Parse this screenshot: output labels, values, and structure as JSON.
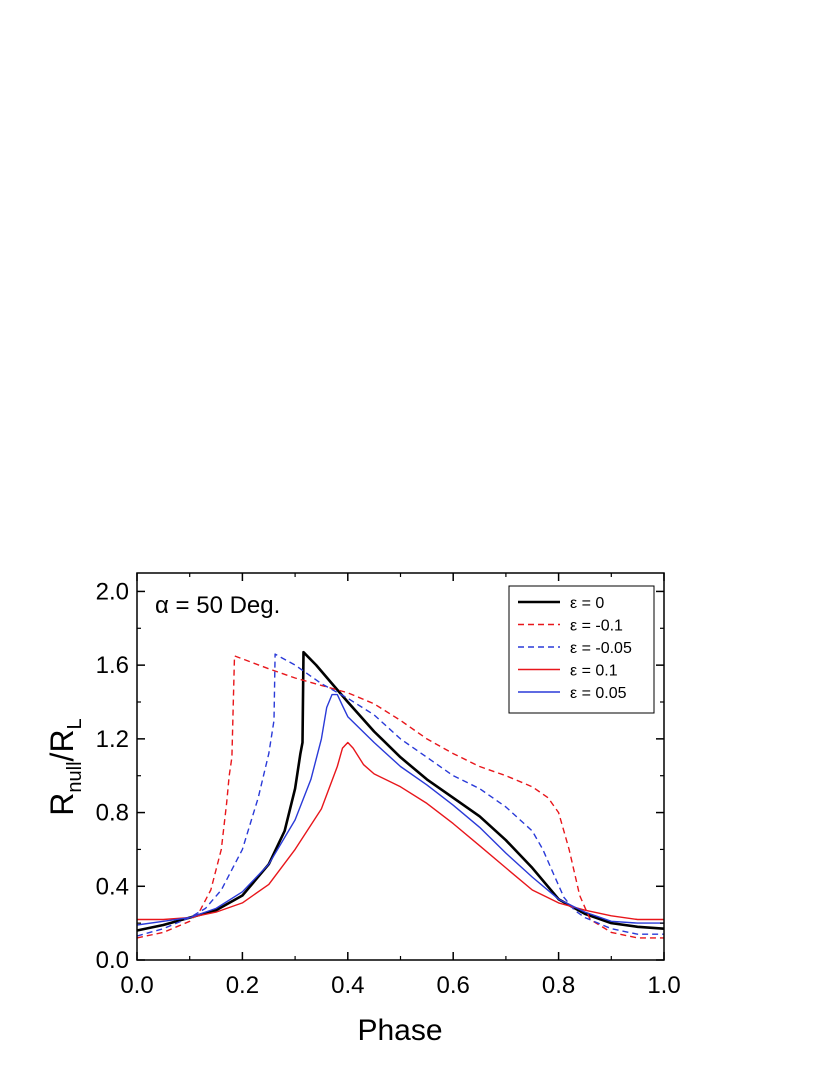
{
  "chart_data": {
    "type": "line",
    "annotation": "α = 50 Deg.",
    "xlabel": "Phase",
    "ylabel_main": "R",
    "ylabel_sub1": "null",
    "ylabel_mid": "/R",
    "ylabel_sub2": "L",
    "xlim": [
      0.0,
      1.0
    ],
    "ylim": [
      0.0,
      2.1
    ],
    "xticks": [
      "0.0",
      "0.2",
      "0.4",
      "0.6",
      "0.8",
      "1.0"
    ],
    "yticks": [
      "0.0",
      "0.4",
      "0.8",
      "1.2",
      "1.6",
      "2.0"
    ],
    "legend_position": "top-right",
    "series": [
      {
        "name": "ε = 0",
        "color": "#000000",
        "dash": "solid",
        "width": "thick",
        "points": [
          [
            0.0,
            0.16
          ],
          [
            0.05,
            0.19
          ],
          [
            0.1,
            0.23
          ],
          [
            0.15,
            0.27
          ],
          [
            0.2,
            0.35
          ],
          [
            0.25,
            0.52
          ],
          [
            0.28,
            0.7
          ],
          [
            0.3,
            0.93
          ],
          [
            0.31,
            1.12
          ],
          [
            0.314,
            1.18
          ],
          [
            0.316,
            1.67
          ],
          [
            0.34,
            1.6
          ],
          [
            0.37,
            1.5
          ],
          [
            0.4,
            1.4
          ],
          [
            0.45,
            1.24
          ],
          [
            0.5,
            1.1
          ],
          [
            0.55,
            0.98
          ],
          [
            0.6,
            0.88
          ],
          [
            0.65,
            0.78
          ],
          [
            0.7,
            0.65
          ],
          [
            0.75,
            0.5
          ],
          [
            0.8,
            0.33
          ],
          [
            0.85,
            0.25
          ],
          [
            0.9,
            0.2
          ],
          [
            0.95,
            0.18
          ],
          [
            1.0,
            0.17
          ]
        ]
      },
      {
        "name": "ε = -0.1",
        "color": "#e8161b",
        "dash": "dashed",
        "width": "thin",
        "points": [
          [
            0.0,
            0.12
          ],
          [
            0.05,
            0.15
          ],
          [
            0.1,
            0.21
          ],
          [
            0.12,
            0.27
          ],
          [
            0.14,
            0.38
          ],
          [
            0.16,
            0.6
          ],
          [
            0.17,
            0.85
          ],
          [
            0.175,
            1.0
          ],
          [
            0.18,
            1.1
          ],
          [
            0.185,
            1.65
          ],
          [
            0.25,
            1.58
          ],
          [
            0.3,
            1.53
          ],
          [
            0.35,
            1.49
          ],
          [
            0.4,
            1.45
          ],
          [
            0.45,
            1.39
          ],
          [
            0.5,
            1.3
          ],
          [
            0.55,
            1.2
          ],
          [
            0.6,
            1.12
          ],
          [
            0.65,
            1.05
          ],
          [
            0.7,
            1.0
          ],
          [
            0.75,
            0.94
          ],
          [
            0.78,
            0.88
          ],
          [
            0.8,
            0.8
          ],
          [
            0.82,
            0.6
          ],
          [
            0.84,
            0.35
          ],
          [
            0.86,
            0.22
          ],
          [
            0.9,
            0.15
          ],
          [
            0.95,
            0.12
          ],
          [
            1.0,
            0.12
          ]
        ]
      },
      {
        "name": "ε = -0.05",
        "color": "#2a3ad8",
        "dash": "dashed",
        "width": "thin",
        "points": [
          [
            0.0,
            0.13
          ],
          [
            0.05,
            0.17
          ],
          [
            0.1,
            0.23
          ],
          [
            0.13,
            0.28
          ],
          [
            0.16,
            0.38
          ],
          [
            0.2,
            0.6
          ],
          [
            0.23,
            0.88
          ],
          [
            0.25,
            1.12
          ],
          [
            0.26,
            1.3
          ],
          [
            0.262,
            1.66
          ],
          [
            0.3,
            1.6
          ],
          [
            0.35,
            1.5
          ],
          [
            0.4,
            1.42
          ],
          [
            0.45,
            1.33
          ],
          [
            0.5,
            1.2
          ],
          [
            0.55,
            1.1
          ],
          [
            0.6,
            1.0
          ],
          [
            0.65,
            0.93
          ],
          [
            0.7,
            0.83
          ],
          [
            0.75,
            0.7
          ],
          [
            0.77,
            0.6
          ],
          [
            0.79,
            0.47
          ],
          [
            0.81,
            0.34
          ],
          [
            0.83,
            0.27
          ],
          [
            0.85,
            0.23
          ],
          [
            0.9,
            0.17
          ],
          [
            0.95,
            0.14
          ],
          [
            1.0,
            0.14
          ]
        ]
      },
      {
        "name": "ε = 0.1",
        "color": "#e8161b",
        "dash": "solid",
        "width": "thin",
        "points": [
          [
            0.0,
            0.22
          ],
          [
            0.05,
            0.22
          ],
          [
            0.1,
            0.23
          ],
          [
            0.15,
            0.26
          ],
          [
            0.2,
            0.31
          ],
          [
            0.25,
            0.41
          ],
          [
            0.3,
            0.6
          ],
          [
            0.35,
            0.82
          ],
          [
            0.38,
            1.05
          ],
          [
            0.39,
            1.15
          ],
          [
            0.4,
            1.18
          ],
          [
            0.41,
            1.15
          ],
          [
            0.43,
            1.06
          ],
          [
            0.45,
            1.01
          ],
          [
            0.5,
            0.94
          ],
          [
            0.55,
            0.85
          ],
          [
            0.6,
            0.74
          ],
          [
            0.65,
            0.62
          ],
          [
            0.7,
            0.5
          ],
          [
            0.75,
            0.38
          ],
          [
            0.8,
            0.31
          ],
          [
            0.85,
            0.27
          ],
          [
            0.9,
            0.24
          ],
          [
            0.95,
            0.22
          ],
          [
            1.0,
            0.22
          ]
        ]
      },
      {
        "name": "ε = 0.05",
        "color": "#2a3ad8",
        "dash": "solid",
        "width": "thin",
        "points": [
          [
            0.0,
            0.19
          ],
          [
            0.05,
            0.21
          ],
          [
            0.1,
            0.23
          ],
          [
            0.15,
            0.28
          ],
          [
            0.2,
            0.37
          ],
          [
            0.25,
            0.52
          ],
          [
            0.3,
            0.76
          ],
          [
            0.33,
            0.98
          ],
          [
            0.35,
            1.2
          ],
          [
            0.36,
            1.37
          ],
          [
            0.37,
            1.44
          ],
          [
            0.38,
            1.44
          ],
          [
            0.39,
            1.38
          ],
          [
            0.4,
            1.32
          ],
          [
            0.45,
            1.18
          ],
          [
            0.5,
            1.05
          ],
          [
            0.55,
            0.95
          ],
          [
            0.6,
            0.84
          ],
          [
            0.65,
            0.72
          ],
          [
            0.7,
            0.58
          ],
          [
            0.75,
            0.45
          ],
          [
            0.8,
            0.33
          ],
          [
            0.85,
            0.26
          ],
          [
            0.9,
            0.21
          ],
          [
            0.95,
            0.2
          ],
          [
            1.0,
            0.2
          ]
        ]
      }
    ]
  }
}
